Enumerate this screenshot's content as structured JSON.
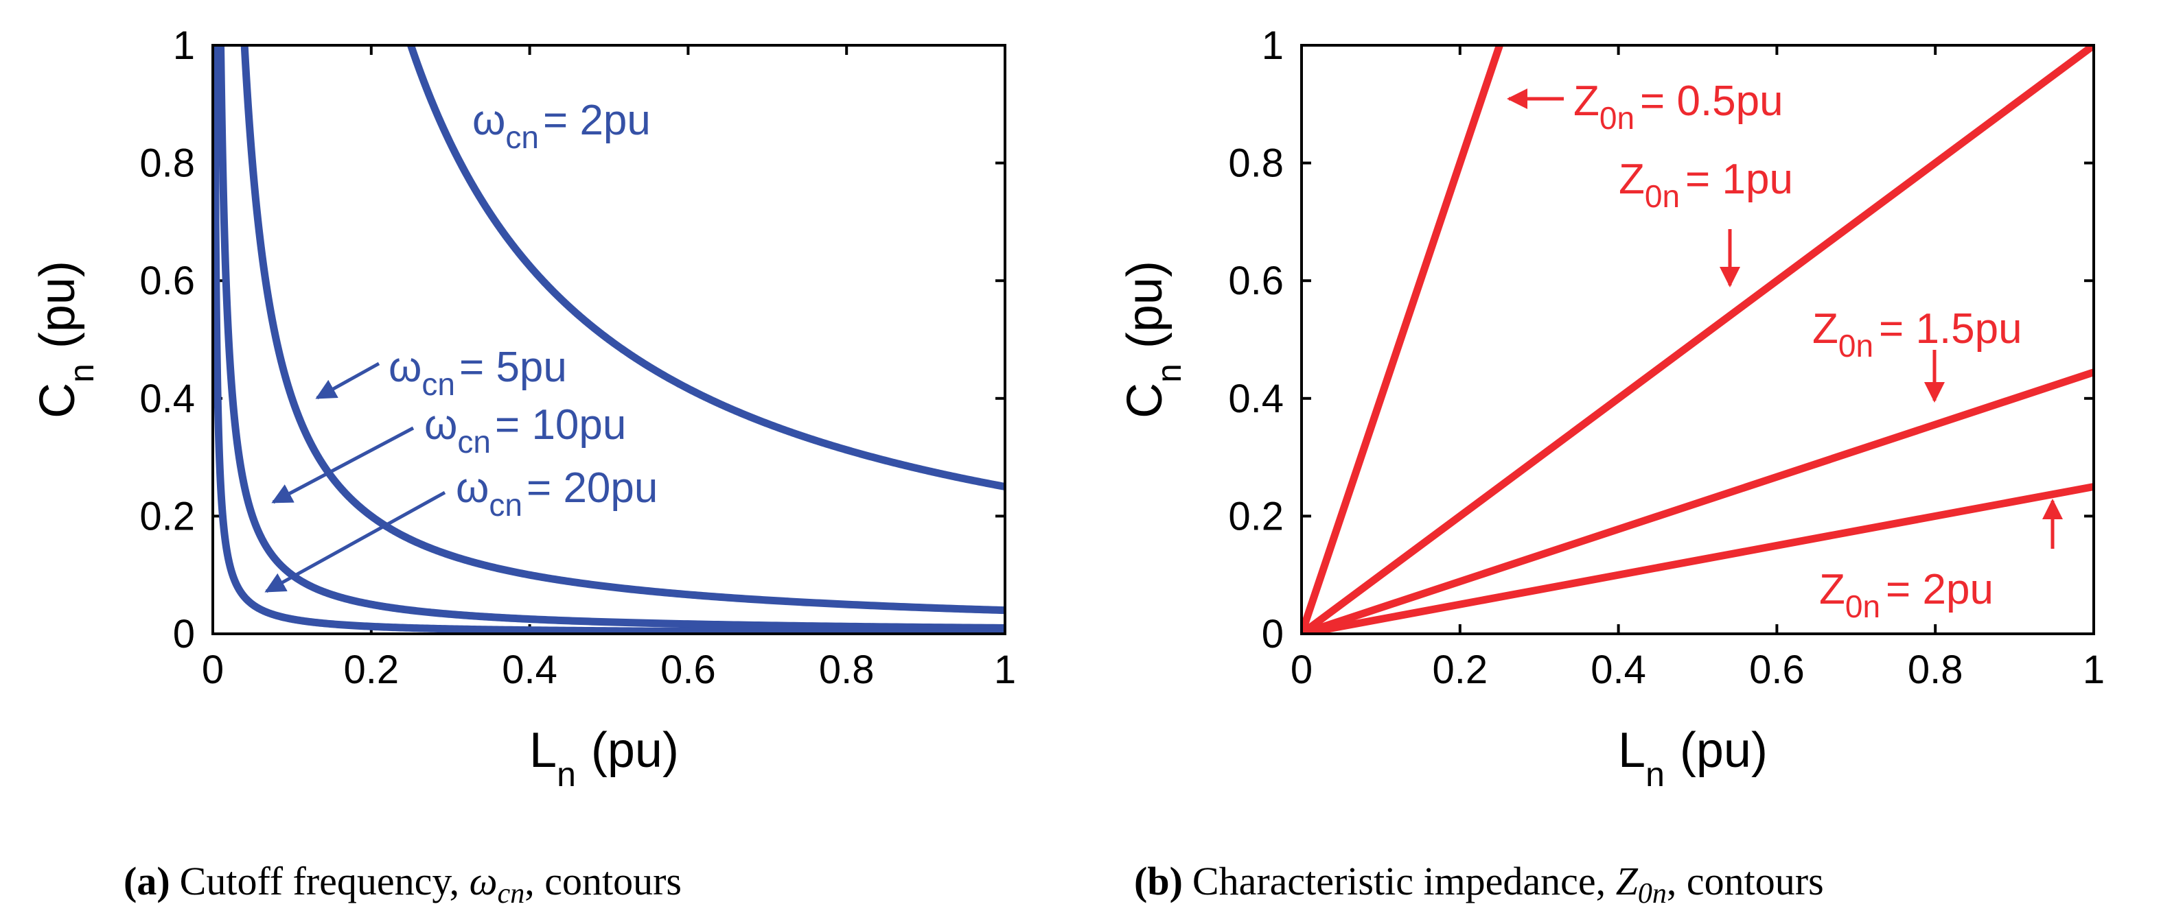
{
  "colors": {
    "blue": "#3551a6",
    "red": "#ee2a2f"
  },
  "chart_data": [
    {
      "type": "line",
      "id": "a",
      "xlabel": "L",
      "xlabel_sub": "n",
      "xlabel_unit": "(pu)",
      "ylabel": "C",
      "ylabel_sub": "n",
      "ylabel_unit": "(pu)",
      "xlim": [
        0,
        1
      ],
      "ylim": [
        0,
        1
      ],
      "xticks": [
        "0",
        "0.2",
        "0.4",
        "0.6",
        "0.8",
        "1"
      ],
      "yticks": [
        "0",
        "0.2",
        "0.4",
        "0.6",
        "0.8",
        "1"
      ],
      "series": [
        {
          "name": "ωcn = 2pu",
          "omega": 2,
          "relation": "C = 1/(ω²·L)"
        },
        {
          "name": "ωcn = 5pu",
          "omega": 5,
          "relation": "C = 1/(ω²·L)"
        },
        {
          "name": "ωcn = 10pu",
          "omega": 10,
          "relation": "C = 1/(ω²·L)"
        },
        {
          "name": "ωcn = 20pu",
          "omega": 20,
          "relation": "C = 1/(ω²·L)"
        }
      ],
      "annotations": [
        {
          "symbol": "ω",
          "sub": "cn",
          "text": "= 2pu"
        },
        {
          "symbol": "ω",
          "sub": "cn",
          "text": "= 5pu"
        },
        {
          "symbol": "ω",
          "sub": "cn",
          "text": "= 10pu"
        },
        {
          "symbol": "ω",
          "sub": "cn",
          "text": "= 20pu"
        }
      ],
      "caption": {
        "label": "(a)",
        "text_before": "Cutoff frequency, ",
        "math": "ω",
        "math_sub": "cn",
        "text_after": ", contours"
      }
    },
    {
      "type": "line",
      "id": "b",
      "xlabel": "L",
      "xlabel_sub": "n",
      "xlabel_unit": "(pu)",
      "ylabel": "C",
      "ylabel_sub": "n",
      "ylabel_unit": "(pu)",
      "xlim": [
        0,
        1
      ],
      "ylim": [
        0,
        1
      ],
      "xticks": [
        "0",
        "0.2",
        "0.4",
        "0.6",
        "0.8",
        "1"
      ],
      "yticks": [
        "0",
        "0.2",
        "0.4",
        "0.6",
        "0.8",
        "1"
      ],
      "series": [
        {
          "name": "Z0n = 0.5pu",
          "z": 0.5,
          "relation": "C = L/Z²"
        },
        {
          "name": "Z0n = 1pu",
          "z": 1,
          "relation": "C = L/Z²"
        },
        {
          "name": "Z0n = 1.5pu",
          "z": 1.5,
          "relation": "C = L/Z²"
        },
        {
          "name": "Z0n = 2pu",
          "z": 2,
          "relation": "C = L/Z²"
        }
      ],
      "annotations": [
        {
          "symbol": "Z",
          "sub": "0n",
          "text": "= 0.5pu"
        },
        {
          "symbol": "Z",
          "sub": "0n",
          "text": "= 1pu"
        },
        {
          "symbol": "Z",
          "sub": "0n",
          "text": "= 1.5pu"
        },
        {
          "symbol": "Z",
          "sub": "0n",
          "text": "= 2pu"
        }
      ],
      "caption": {
        "label": "(b)",
        "text_before": "Characteristic impedance, ",
        "math": "Z",
        "math_sub": "0n",
        "text_after": ", contours"
      }
    }
  ]
}
